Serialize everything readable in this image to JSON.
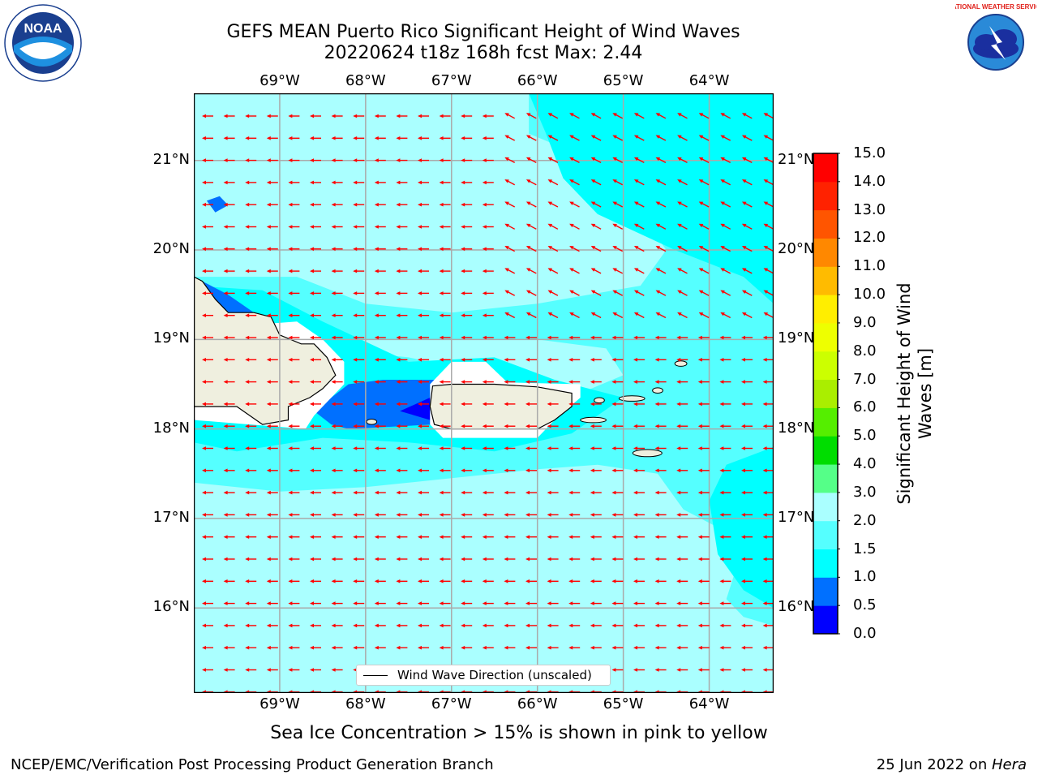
{
  "header": {
    "title": "GEFS MEAN Puerto Rico Significant Height of Wind Waves",
    "subtitle": "20220624 t18z 168h fcst   Max: 2.44"
  },
  "logos": {
    "left": "noaa-logo",
    "right": "nws-logo",
    "left_text": "NOAA",
    "right_text": "NATIONAL WEATHER SERVICE"
  },
  "map": {
    "lon_labels": [
      "69°W",
      "68°W",
      "67°W",
      "66°W",
      "65°W",
      "64°W"
    ],
    "lat_labels": [
      "21°N",
      "20°N",
      "19°N",
      "18°N",
      "17°N",
      "16°N"
    ],
    "longitudes": [
      -69,
      -68,
      -67,
      -66,
      -65,
      -64
    ],
    "latitudes": [
      21,
      20,
      19,
      18,
      17,
      16
    ],
    "extent": {
      "lon": [
        -70,
        -63.25
      ],
      "lat": [
        15.05,
        21.75
      ]
    },
    "background": "#aaffff",
    "arrow_color": "#ff0000",
    "land_color": "#efefdf"
  },
  "legend": {
    "label": "Wind Wave Direction (unscaled)"
  },
  "colorbar": {
    "label": "Significant Height of Wind Waves [m]",
    "ticks": [
      "0.0",
      "0.5",
      "1.0",
      "1.5",
      "2.0",
      "3.0",
      "4.0",
      "5.0",
      "6.0",
      "7.0",
      "8.0",
      "9.0",
      "10.0",
      "11.0",
      "12.0",
      "13.0",
      "14.0",
      "15.0"
    ],
    "colors": [
      "#0000ff",
      "#0070ff",
      "#00ffff",
      "#55ffff",
      "#aaffff",
      "#55ff88",
      "#00dd00",
      "#55ee00",
      "#aaee00",
      "#ccff00",
      "#eeff00",
      "#ffee00",
      "#ffbb00",
      "#ff8800",
      "#ff5500",
      "#ff2200",
      "#ff0000"
    ]
  },
  "note": "Sea Ice Concentration > 15% is shown in pink to yellow",
  "footer": {
    "left": "NCEP/EMC/Verification Post Processing Product Generation Branch",
    "right_prefix": "25 Jun 2022 on ",
    "right_machine": "Hera"
  }
}
